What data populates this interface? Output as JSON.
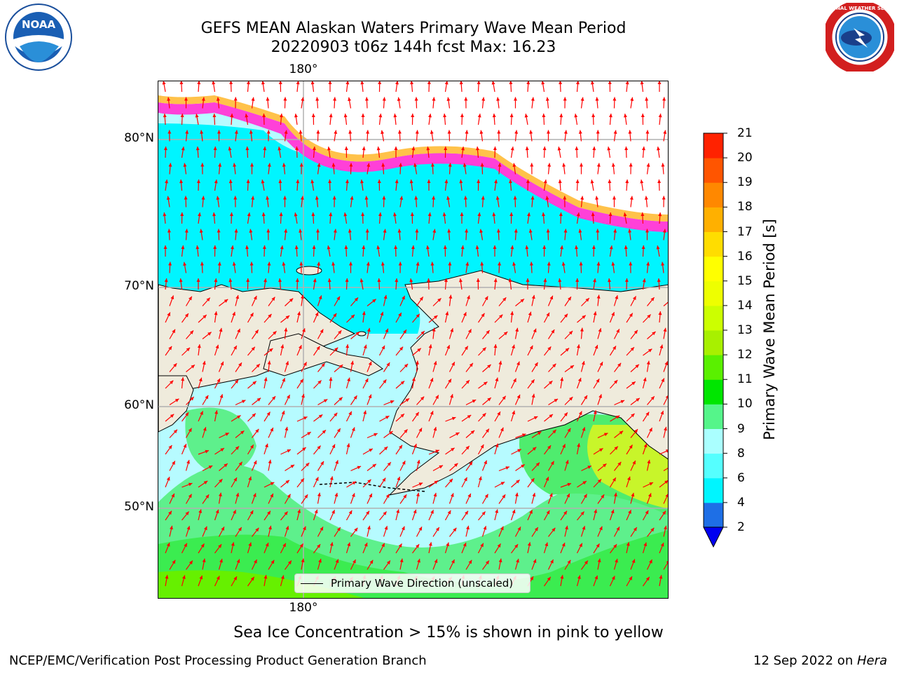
{
  "header": {
    "title_line1": "GEFS MEAN Alaskan Waters Primary Wave Mean Period",
    "title_line2": "20220903 t06z 144h fcst   Max: 16.23"
  },
  "logos": {
    "left": {
      "icon": "noaa-logo",
      "text": "NOAA"
    },
    "right": {
      "icon": "nws-logo",
      "text": "NATIONAL WEATHER SERVICE"
    }
  },
  "map": {
    "lon_label_top": "180°",
    "lon_label_bottom": "180°",
    "lat_labels": [
      "80°N",
      "70°N",
      "60°N",
      "50°N"
    ],
    "legend_label": "Primary Wave Direction (unscaled)",
    "arrow_color": "#ff0000",
    "land_color": "#efebdc",
    "grid_color": "#b0b0b0"
  },
  "colorbar": {
    "label": "Primary Wave Mean Period [s]",
    "ticks": [
      "2",
      "4",
      "6",
      "8",
      "9",
      "10",
      "11",
      "12",
      "13",
      "14",
      "15",
      "16",
      "17",
      "18",
      "19",
      "20",
      "21"
    ],
    "colors": [
      "#1e6fe6",
      "#00f5ff",
      "#55ffff",
      "#aaffff",
      "#55f58a",
      "#00e600",
      "#5af000",
      "#a8f000",
      "#ccff00",
      "#eeff00",
      "#ffff00",
      "#ffdd00",
      "#ffb000",
      "#ff8800",
      "#ff5500",
      "#ff2200"
    ],
    "extend_color": "#0000f0"
  },
  "footer": {
    "ice_note": "Sea Ice Concentration > 15% is shown in pink to yellow",
    "left": "NCEP/EMC/Verification Post Processing Product Generation Branch",
    "right_date": "12 Sep 2022 on ",
    "right_host": "Hera"
  }
}
